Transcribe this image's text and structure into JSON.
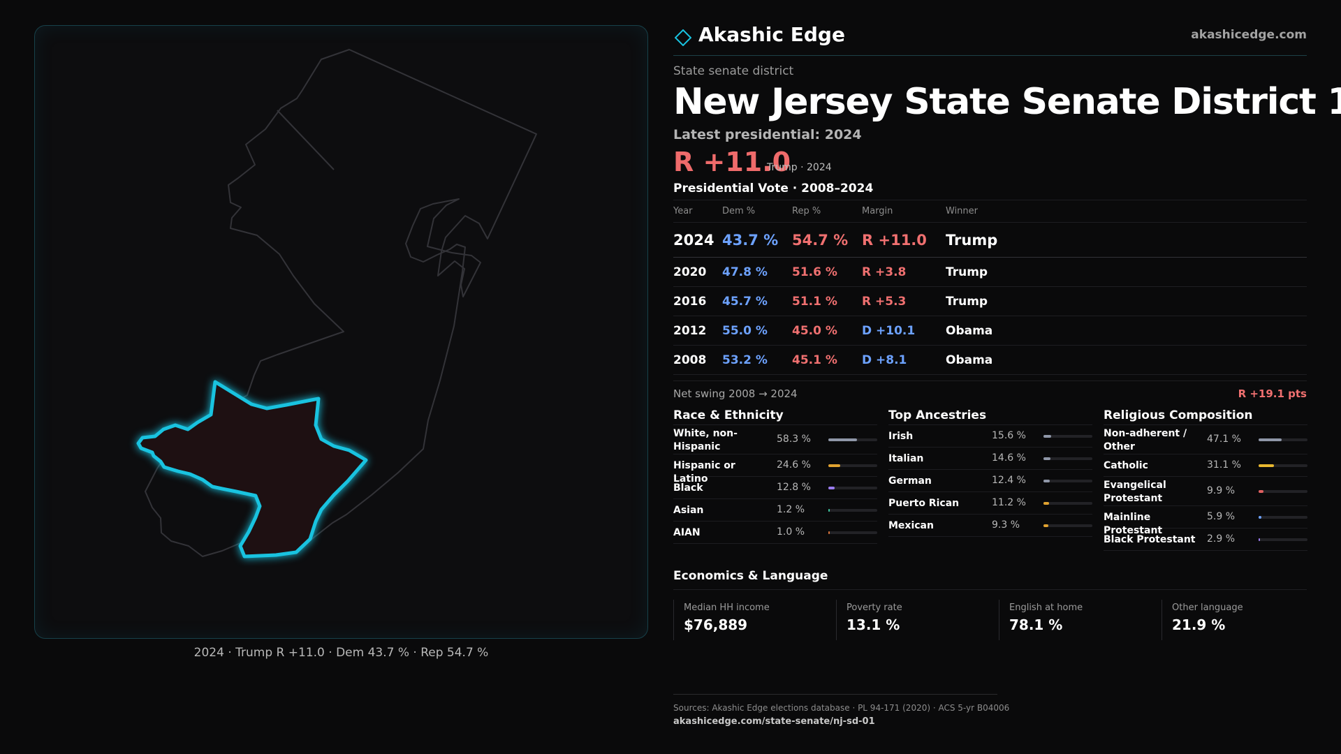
{
  "map": {
    "caption": "2024 · Trump R +11.0 · Dem 43.7 % · Rep 54.7 %",
    "state_outline_color": "#333338",
    "district_stroke_color": "#19c3e0",
    "district_fill_color": "#1e1012",
    "state_icon": "new-jersey-outline",
    "district_icon": "district-highlight"
  },
  "brand": {
    "name": "Akashic Edge",
    "url": "akashicedge.com",
    "logo_icon": "diamond-icon",
    "accent_color": "#19c3e0"
  },
  "header": {
    "kicker": "State senate district",
    "title": "New Jersey State Senate District 1",
    "latest_label": "Latest presidential: 2024",
    "margin": "R +11.0",
    "margin_sub": "Trump · 2024"
  },
  "votes": {
    "title": "Presidential Vote · 2008–2024",
    "columns": [
      "Year",
      "Dem %",
      "Rep %",
      "Margin",
      "Winner"
    ],
    "rows": [
      {
        "year": "2024",
        "dem": "43.7 %",
        "rep": "54.7 %",
        "margin": "R +11.0",
        "party": "r",
        "winner": "Trump"
      },
      {
        "year": "2020",
        "dem": "47.8 %",
        "rep": "51.6 %",
        "margin": "R +3.8",
        "party": "r",
        "winner": "Trump"
      },
      {
        "year": "2016",
        "dem": "45.7 %",
        "rep": "51.1 %",
        "margin": "R +5.3",
        "party": "r",
        "winner": "Trump"
      },
      {
        "year": "2012",
        "dem": "55.0 %",
        "rep": "45.0 %",
        "margin": "D +10.1",
        "party": "d",
        "winner": "Obama"
      },
      {
        "year": "2008",
        "dem": "53.2 %",
        "rep": "45.1 %",
        "margin": "D +8.1",
        "party": "d",
        "winner": "Obama"
      }
    ],
    "swing_label": "Net swing 2008 → 2024",
    "swing_value": "R +19.1 pts"
  },
  "race": {
    "title": "Race & Ethnicity",
    "items": [
      {
        "label": "White, non-Hispanic",
        "value": "58.3 %",
        "pct": 58.3,
        "color": "#8f97a8"
      },
      {
        "label": "Hispanic or Latino",
        "value": "24.6 %",
        "pct": 24.6,
        "color": "#e0a230"
      },
      {
        "label": "Black",
        "value": "12.8 %",
        "pct": 12.8,
        "color": "#9b7cf0"
      },
      {
        "label": "Asian",
        "value": "1.2 %",
        "pct": 1.2,
        "color": "#3cc7a0"
      },
      {
        "label": "AIAN",
        "value": "1.0 %",
        "pct": 1.0,
        "color": "#d9733a"
      }
    ]
  },
  "ancestry": {
    "title": "Top Ancestries",
    "items": [
      {
        "label": "Irish",
        "value": "15.6 %",
        "pct": 15.6,
        "color": "#8f97a8"
      },
      {
        "label": "Italian",
        "value": "14.6 %",
        "pct": 14.6,
        "color": "#8f97a8"
      },
      {
        "label": "German",
        "value": "12.4 %",
        "pct": 12.4,
        "color": "#8f97a8"
      },
      {
        "label": "Puerto Rican",
        "value": "11.2 %",
        "pct": 11.2,
        "color": "#e0a230"
      },
      {
        "label": "Mexican",
        "value": "9.3 %",
        "pct": 9.3,
        "color": "#e0a230"
      }
    ]
  },
  "religion": {
    "title": "Religious Composition",
    "items": [
      {
        "label": "Non-adherent / Other",
        "value": "47.1 %",
        "pct": 47.1,
        "color": "#8f97a8"
      },
      {
        "label": "Catholic",
        "value": "31.1 %",
        "pct": 31.1,
        "color": "#e8b830"
      },
      {
        "label": "Evangelical Protestant",
        "value": "9.9 %",
        "pct": 9.9,
        "color": "#e06060"
      },
      {
        "label": "Mainline Protestant",
        "value": "5.9 %",
        "pct": 5.9,
        "color": "#6da2ff"
      },
      {
        "label": "Black Protestant",
        "value": "2.9 %",
        "pct": 2.9,
        "color": "#9b7cf0"
      }
    ]
  },
  "economics": {
    "title": "Economics & Language",
    "cards": [
      {
        "label": "Median HH income",
        "value": "$76,889"
      },
      {
        "label": "Poverty rate",
        "value": "13.1 %"
      },
      {
        "label": "English at home",
        "value": "78.1 %"
      },
      {
        "label": "Other language",
        "value": "21.9 %"
      }
    ]
  },
  "footer": {
    "sources": "Sources: Akashic Edge elections database · PL 94-171 (2020) · ACS 5-yr B04006",
    "url": "akashicedge.com/state-senate/nj-sd-01"
  }
}
